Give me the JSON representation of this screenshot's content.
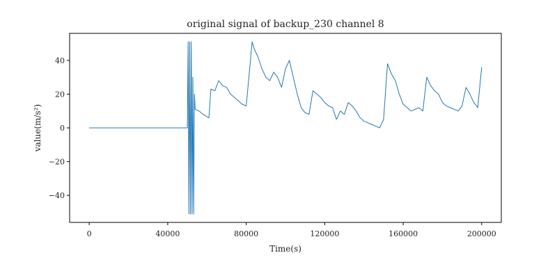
{
  "chart_data": {
    "type": "line",
    "title": "original signal of backup_230 channel 8",
    "xlabel": "Time(s)",
    "ylabel": "value(m/s²)",
    "xlim": [
      -10000,
      210000
    ],
    "ylim": [
      -56,
      56
    ],
    "x_ticks": [
      0,
      40000,
      80000,
      120000,
      160000,
      200000
    ],
    "y_ticks": [
      -40,
      -20,
      0,
      20,
      40
    ],
    "grid": false,
    "legend": "none",
    "series_color": "#1f77b4",
    "series": [
      {
        "x": [
          0,
          50000,
          50400,
          50800,
          51200,
          51600,
          52000,
          52400,
          52800,
          53200,
          53600,
          54000,
          56000,
          58000,
          61000,
          62000,
          64000,
          66000,
          68000,
          70000,
          72000,
          74000,
          76000,
          78000,
          80000,
          82000,
          83000,
          84000,
          86000,
          88000,
          90000,
          92000,
          94000,
          96000,
          98000,
          100000,
          102000,
          104000,
          106000,
          108000,
          110000,
          112000,
          114000,
          116000,
          118000,
          120000,
          122000,
          124000,
          126000,
          128000,
          130000,
          132000,
          134000,
          136000,
          138000,
          140000,
          142000,
          144000,
          146000,
          148000,
          150000,
          152000,
          154000,
          156000,
          158000,
          160000,
          162000,
          164000,
          166000,
          168000,
          170000,
          172000,
          174000,
          176000,
          178000,
          180000,
          182000,
          184000,
          186000,
          188000,
          190000,
          192000,
          194000,
          196000,
          198000,
          200000
        ],
        "y": [
          0,
          0,
          51,
          -51,
          51,
          -51,
          51,
          -51,
          30,
          -51,
          20,
          11,
          10,
          8,
          6,
          23,
          22,
          28,
          25,
          24,
          20,
          18,
          16,
          14,
          13,
          38,
          51,
          47,
          42,
          35,
          30,
          28,
          33,
          30,
          24,
          35,
          40,
          30,
          20,
          12,
          9,
          8,
          22,
          20,
          18,
          15,
          13,
          12,
          5,
          10,
          8,
          15,
          13,
          10,
          6,
          4,
          3,
          2,
          1,
          0,
          5,
          38,
          32,
          28,
          20,
          14,
          12,
          10,
          11,
          12,
          10,
          30,
          25,
          22,
          20,
          15,
          13,
          12,
          11,
          10,
          13,
          24,
          20,
          15,
          12,
          36
        ]
      }
    ]
  }
}
